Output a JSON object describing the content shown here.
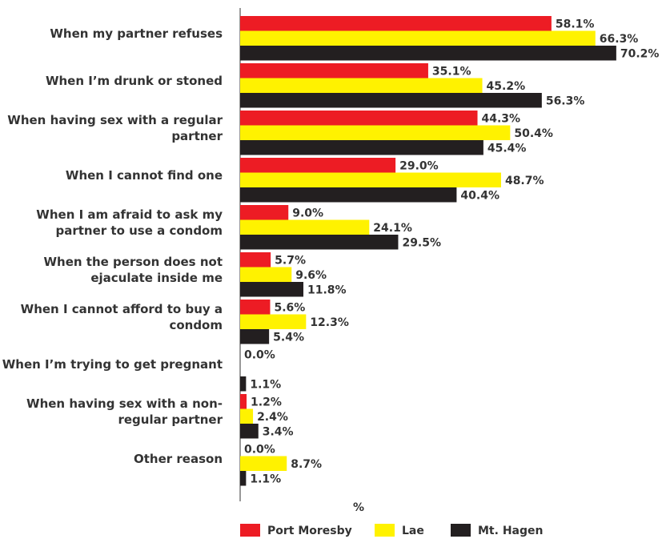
{
  "chart_data": {
    "type": "hbar",
    "categories": [
      "When my partner refuses",
      "When I’m drunk or stoned",
      "When having sex with a regular partner",
      "When I cannot find one",
      "When I am afraid to ask my partner to use a condom",
      "When the person does not ejaculate inside me",
      "When I cannot afford to buy a condom",
      "When I’m trying to get pregnant",
      "When having sex with a non-regular partner",
      "Other  reason"
    ],
    "series": [
      {
        "name": "Port Moresby",
        "color": "#ed1c24",
        "values": [
          58.1,
          35.1,
          44.3,
          29.0,
          9.0,
          5.7,
          5.6,
          0.0,
          1.2,
          0.0
        ],
        "value_labels": [
          "58.1%",
          "35.1%",
          "44.3%",
          "29.0%",
          "9.0%",
          "5.7%",
          "5.6%",
          "0.0%",
          "1.2%",
          "0.0%"
        ]
      },
      {
        "name": "Lae",
        "color": "#fff200",
        "values": [
          66.3,
          45.2,
          50.4,
          48.7,
          24.1,
          9.6,
          12.3,
          null,
          2.4,
          8.7
        ],
        "value_labels": [
          "66.3%",
          "45.2%",
          "50.4%",
          "48.7%",
          "24.1%",
          "9.6%",
          "12.3%",
          null,
          "2.4%",
          "8.7%"
        ]
      },
      {
        "name": "Mt. Hagen",
        "color": "#231f20",
        "values": [
          70.2,
          56.3,
          45.4,
          40.4,
          29.5,
          11.8,
          5.4,
          1.1,
          3.4,
          1.1
        ],
        "value_labels": [
          "70.2%",
          "56.3%",
          "45.4%",
          "40.4%",
          "29.5%",
          "11.8%",
          "5.4%",
          "1.1%",
          "3.4%",
          "1.1%"
        ]
      }
    ],
    "x_label": "%",
    "xlim": [
      0,
      75
    ]
  }
}
